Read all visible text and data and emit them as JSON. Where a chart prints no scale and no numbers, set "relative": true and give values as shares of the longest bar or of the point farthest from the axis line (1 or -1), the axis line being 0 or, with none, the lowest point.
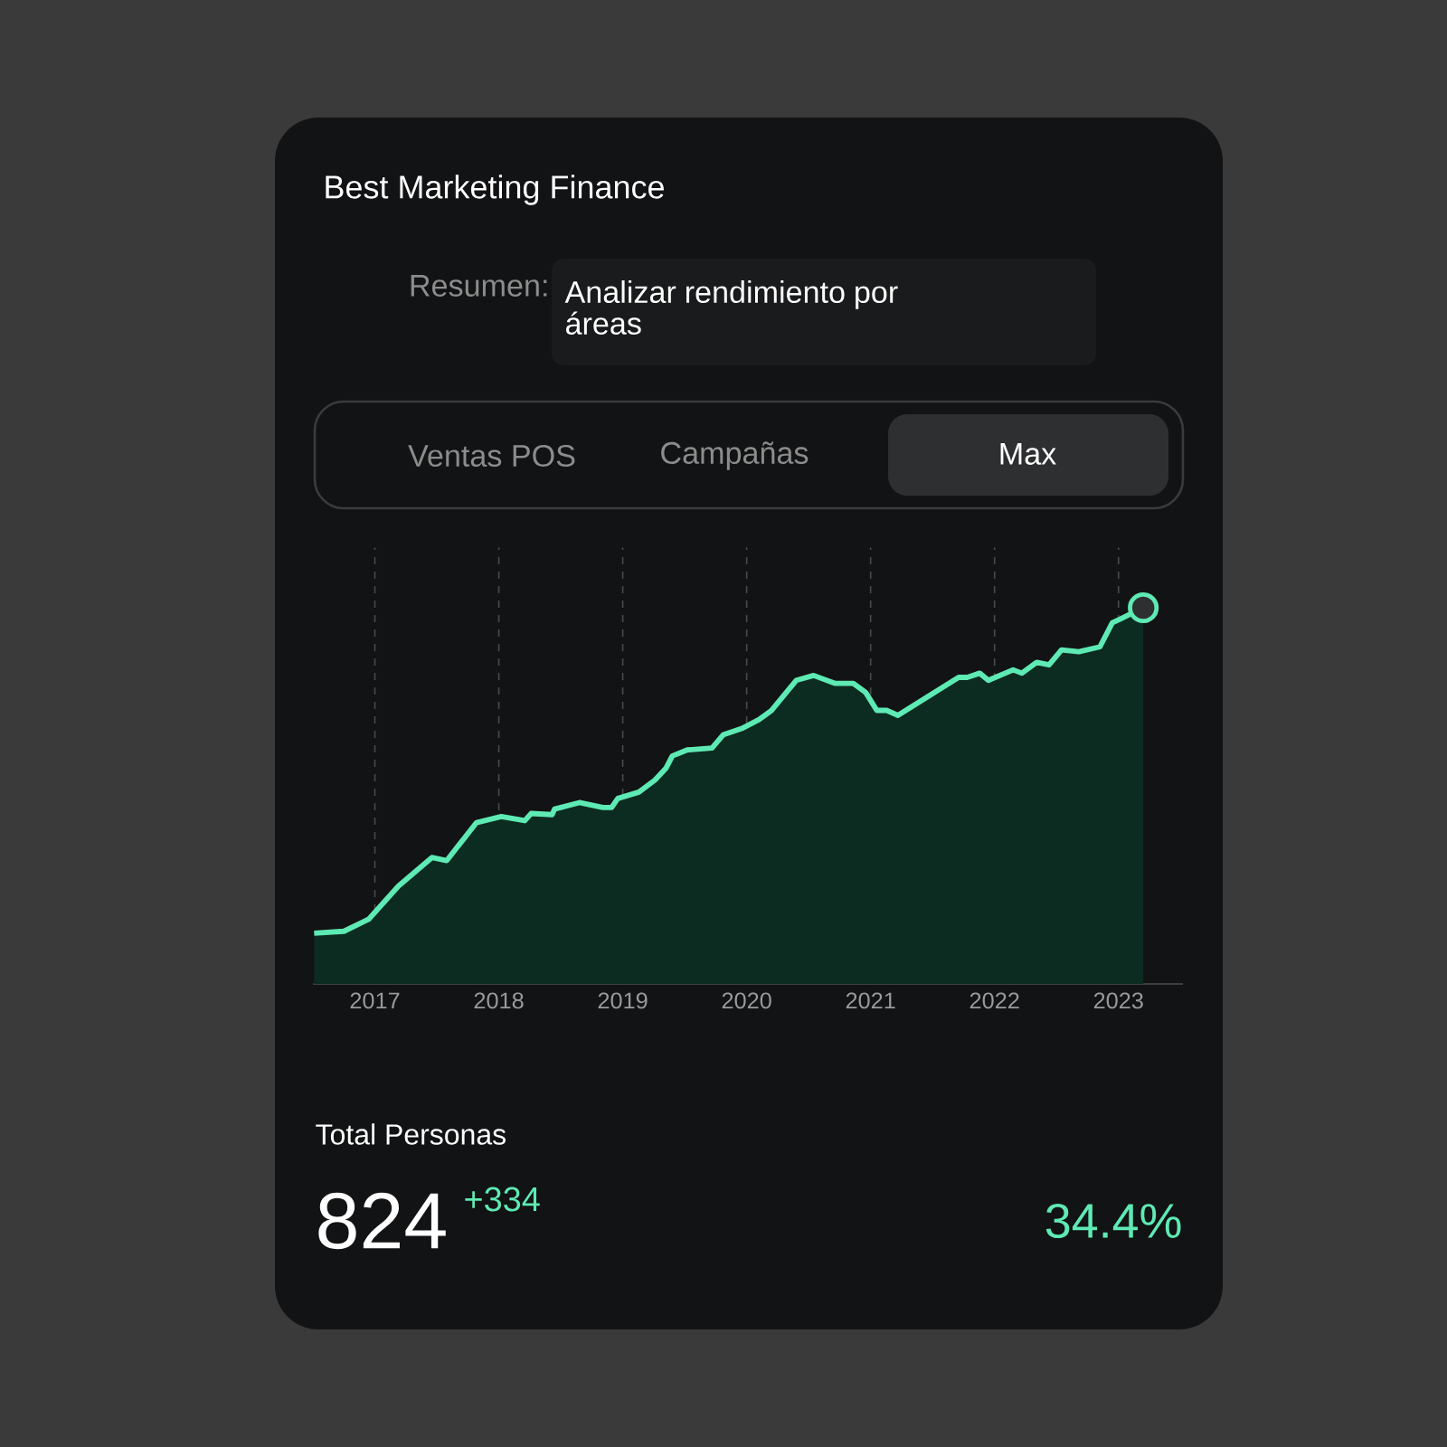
{
  "chart_data": {
    "type": "area",
    "title": "Best Marketing Finance",
    "relative": true,
    "xlim": [
      2016.5,
      2023.52
    ],
    "xticks": [
      2017,
      2018,
      2019,
      2020,
      2021,
      2022,
      2023
    ],
    "grid": "x",
    "annotations": [
      "Resumen:",
      "Analizar rendimiento por áreas",
      "Ventas POS",
      "Campañas",
      "Max",
      "Total Personas",
      "824",
      "+334",
      "34.4%"
    ],
    "series": [
      {
        "color": "#5eeab4",
        "x": [
          2016.51,
          2016.75,
          2016.95,
          2017.19,
          2017.46,
          2017.58,
          2017.82,
          2018.02,
          2018.21,
          2018.26,
          2018.43,
          2018.45,
          2018.65,
          2018.84,
          2018.91,
          2018.96,
          2019.13,
          2019.26,
          2019.35,
          2019.4,
          2019.52,
          2019.72,
          2019.81,
          2019.96,
          2020.1,
          2020.2,
          2020.4,
          2020.54,
          2020.71,
          2020.86,
          2020.96,
          2021.05,
          2021.13,
          2021.22,
          2021.71,
          2021.78,
          2021.88,
          2021.95,
          2022.15,
          2022.22,
          2022.34,
          2022.44,
          2022.54,
          2022.68,
          2022.85,
          2022.95,
          2023.02,
          2023.2
        ],
        "values": [
          0.135,
          0.14,
          0.172,
          0.26,
          0.336,
          0.328,
          0.429,
          0.445,
          0.434,
          0.453,
          0.45,
          0.465,
          0.482,
          0.469,
          0.469,
          0.493,
          0.51,
          0.542,
          0.574,
          0.606,
          0.622,
          0.627,
          0.662,
          0.679,
          0.703,
          0.727,
          0.807,
          0.82,
          0.799,
          0.799,
          0.775,
          0.727,
          0.727,
          0.714,
          0.815,
          0.815,
          0.826,
          0.807,
          0.835,
          0.826,
          0.855,
          0.848,
          0.888,
          0.883,
          0.896,
          0.96,
          0.971,
          1
        ]
      },
      {
        "type": "scatter",
        "color": "#5eeab4",
        "marker": "circle",
        "x": [
          2023.2
        ],
        "values": [
          1
        ]
      }
    ]
  }
}
